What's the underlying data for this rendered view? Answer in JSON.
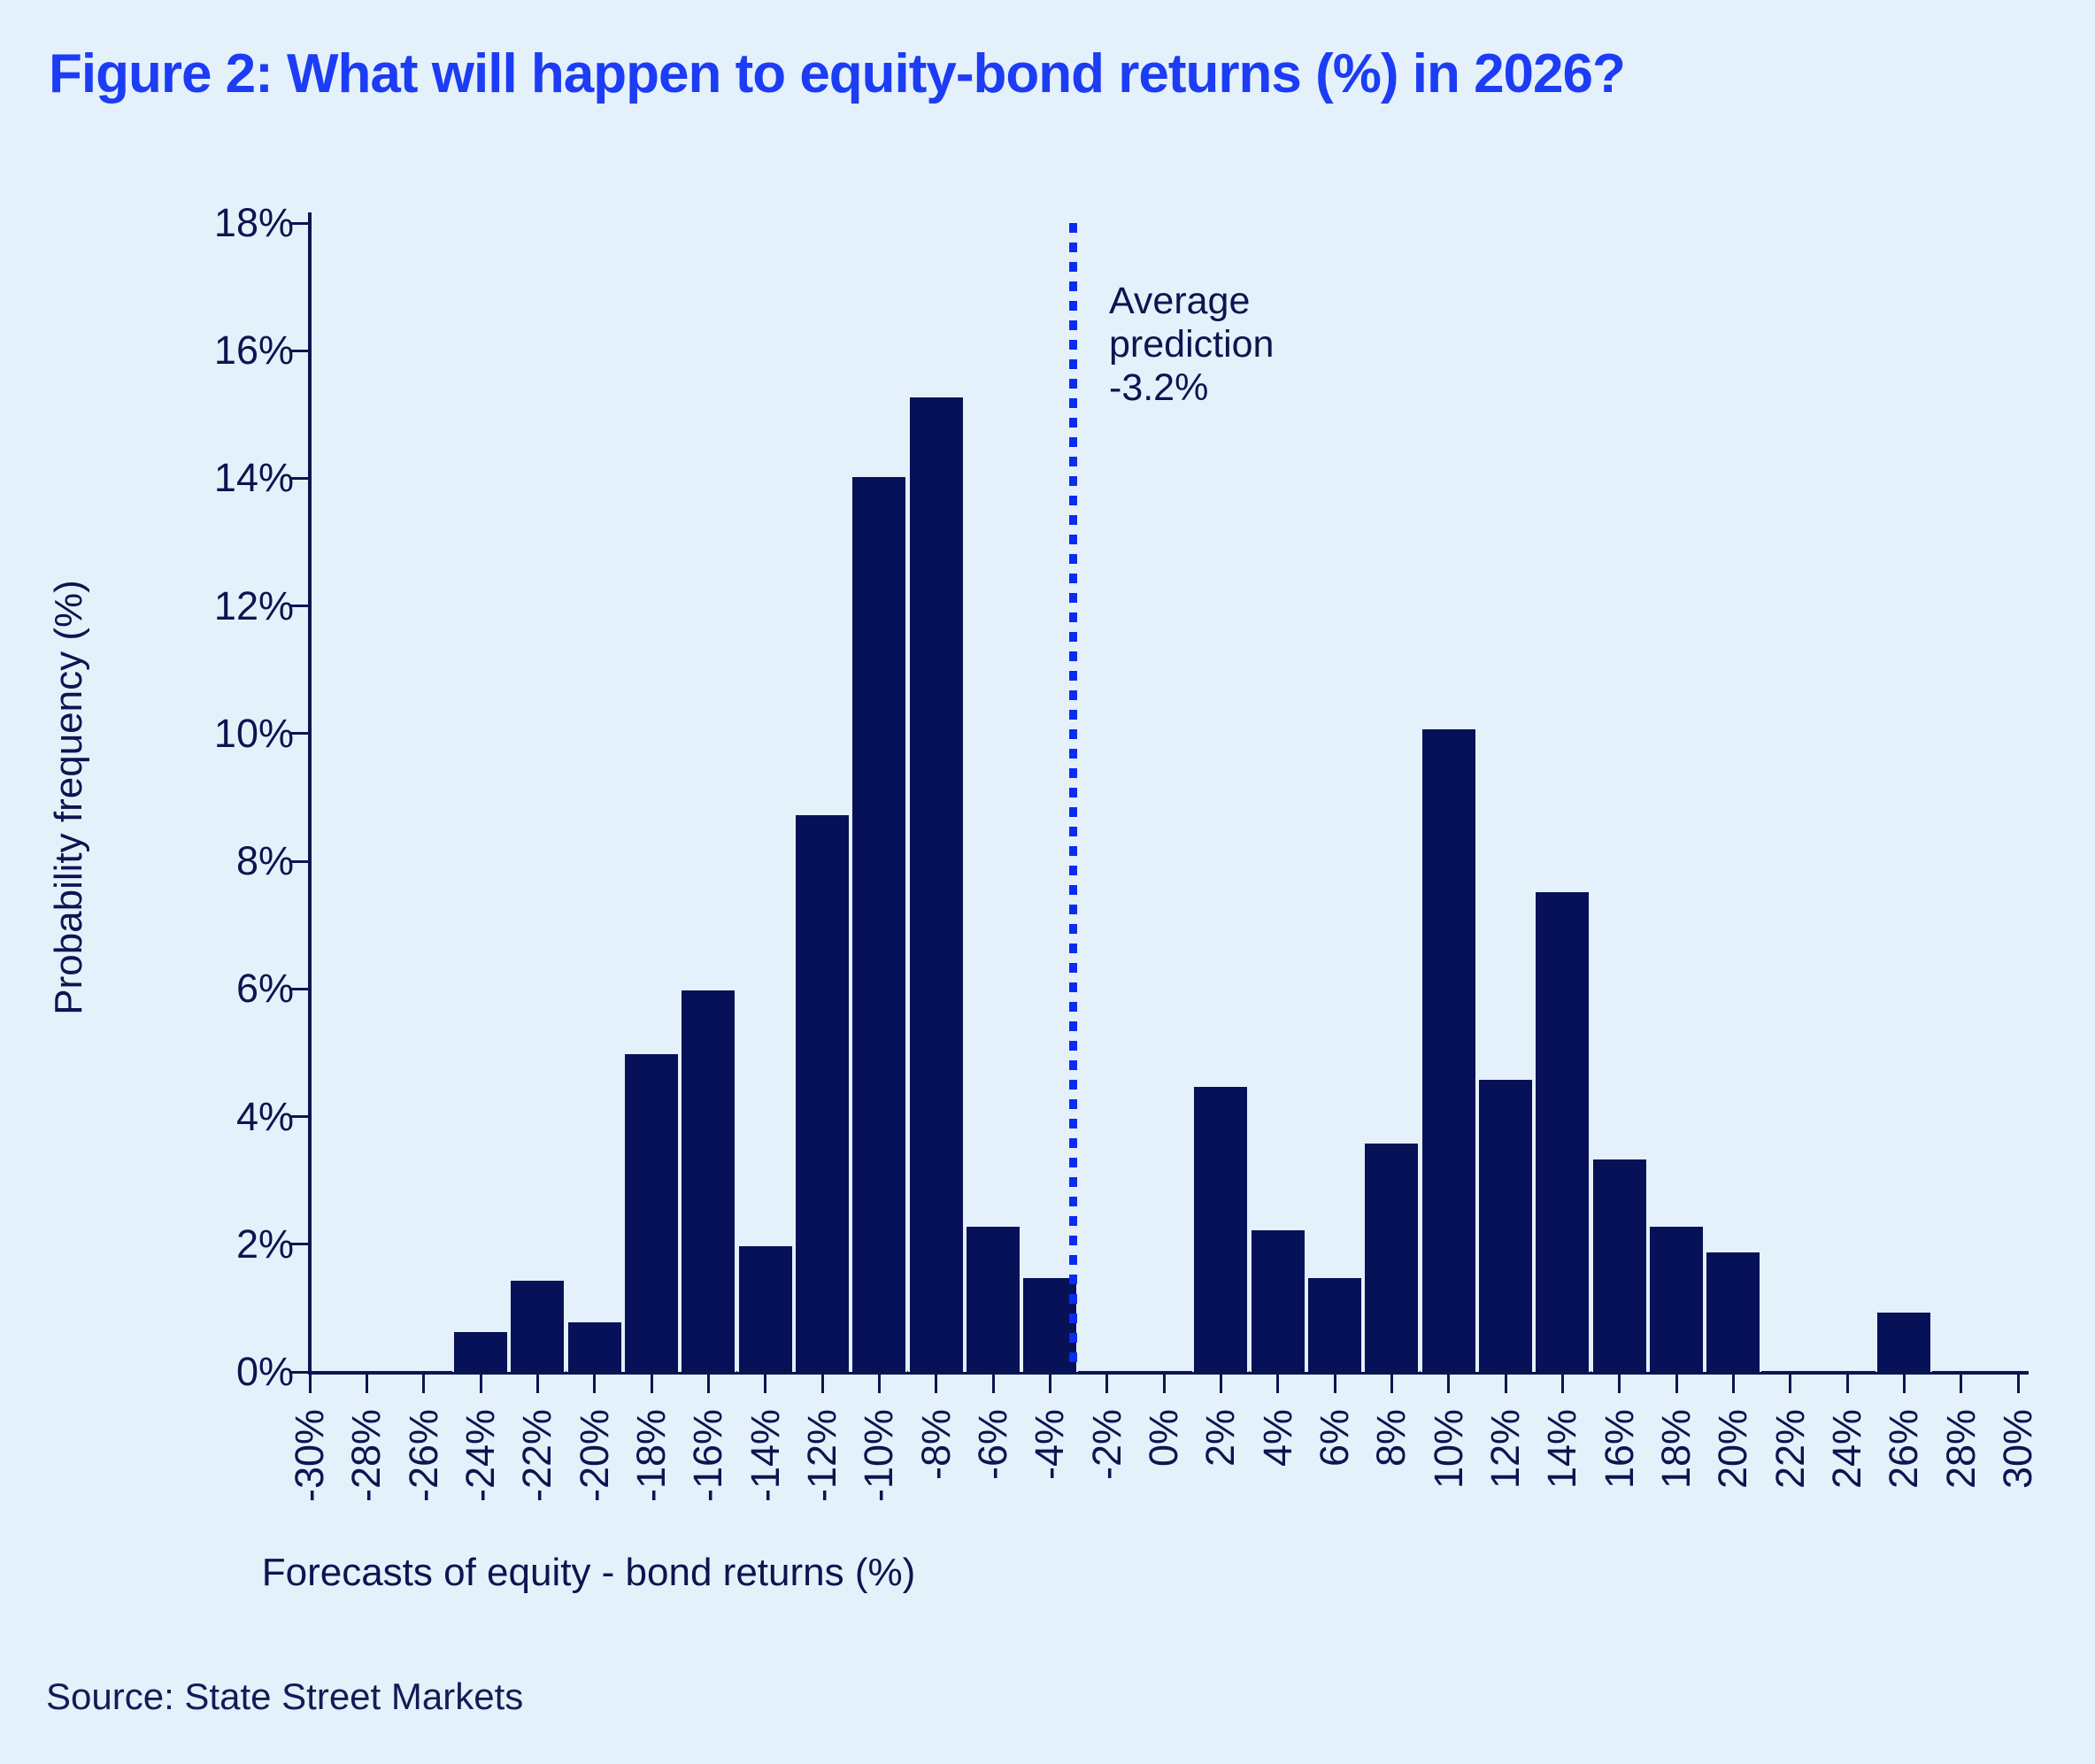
{
  "header": {
    "title": "Figure 2: What will happen to equity-bond returns (%) in 2026?"
  },
  "footer": {
    "source": "Source: State Street Markets"
  },
  "annotation": {
    "lines": [
      "Average",
      "prediction",
      "-3.2%"
    ]
  },
  "colors": {
    "background": "#E4F1FB",
    "bar": "#061157",
    "axis_and_text": "#0B1550",
    "title": "#1C3CF5",
    "dashed_line": "#0A2BF2"
  },
  "chart_data": {
    "type": "bar",
    "title": "Figure 2: What will happen to equity-bond returns (%) in 2026?",
    "xlabel": "Forecasts of equity - bond returns (%)",
    "ylabel": "Probability frequency (%)",
    "categories": [
      -30,
      -28,
      -26,
      -24,
      -22,
      -20,
      -18,
      -16,
      -14,
      -12,
      -10,
      -8,
      -6,
      -4,
      -2,
      0,
      2,
      4,
      6,
      8,
      10,
      12,
      14,
      16,
      18,
      20,
      22,
      24,
      26,
      28,
      30
    ],
    "x_tick_labels": [
      "-30%",
      "-28%",
      "-26%",
      "-24%",
      "-22%",
      "-20%",
      "-18%",
      "-16%",
      "-14%",
      "-12%",
      "-10%",
      "-8%",
      "-6%",
      "-4%",
      "-2%",
      "0%",
      "2%",
      "4%",
      "6%",
      "8%",
      "10%",
      "12%",
      "14%",
      "16%",
      "18%",
      "20%",
      "22%",
      "24%",
      "26%",
      "28%",
      "30%"
    ],
    "values": [
      0,
      0,
      0,
      0.65,
      1.45,
      0.8,
      5.0,
      6.0,
      2.0,
      8.75,
      14.05,
      15.3,
      2.3,
      1.5,
      0,
      0,
      4.5,
      2.25,
      1.5,
      3.6,
      10.1,
      4.6,
      7.55,
      3.35,
      2.3,
      1.9,
      0,
      0,
      0.95,
      0,
      0
    ],
    "ylim": [
      0,
      18
    ],
    "y_tick_values": [
      0,
      2,
      4,
      6,
      8,
      10,
      12,
      14,
      16,
      18
    ],
    "y_tick_labels": [
      "0%",
      "2%",
      "4%",
      "6%",
      "8%",
      "10%",
      "12%",
      "14%",
      "16%",
      "18%"
    ],
    "average_prediction": -3.2,
    "annotation_text": "Average prediction -3.2%",
    "grid": false,
    "legend": "none"
  }
}
